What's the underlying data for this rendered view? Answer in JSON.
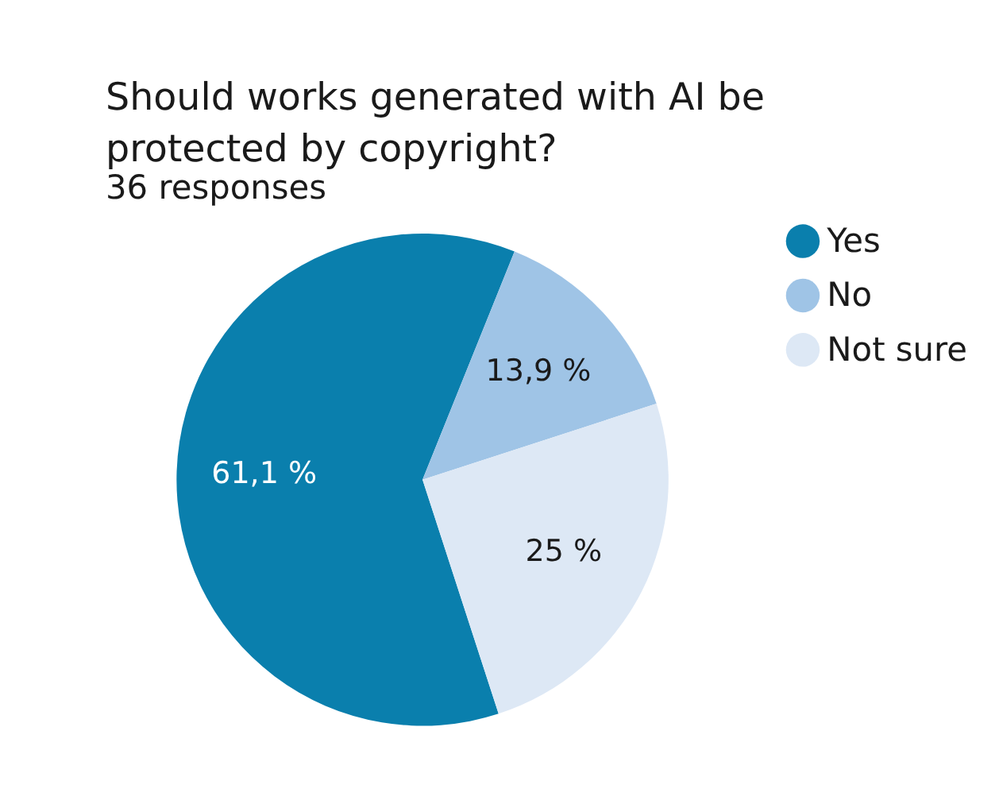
{
  "chart_data": {
    "type": "pie",
    "title": "Should works generated with AI be protected by copyright?",
    "subtitle": "36 responses",
    "categories": [
      "Yes",
      "No",
      "Not sure"
    ],
    "values": [
      61.1,
      13.9,
      25
    ],
    "colors": [
      "#0a7fad",
      "#9fc4e6",
      "#dde8f5"
    ],
    "value_labels": [
      "61,1 %",
      "13,9 %",
      "25 %"
    ],
    "legend": "right"
  }
}
